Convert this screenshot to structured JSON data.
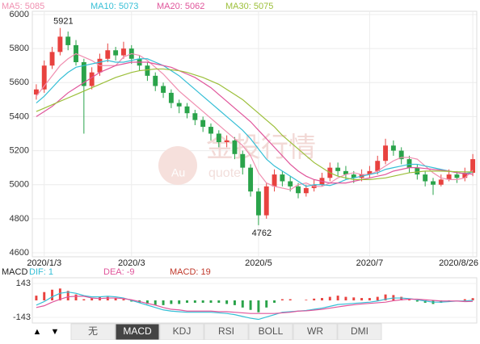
{
  "chart_data": {
    "type": "candlestick",
    "legend": [
      {
        "name": "MA5: 5085",
        "color": "#f08fb0"
      },
      {
        "name": "MA10: 5073",
        "color": "#36bfd6"
      },
      {
        "name": "MA20: 5062",
        "color": "#e0559b"
      },
      {
        "name": "MA30: 5075",
        "color": "#9cbf3a"
      }
    ],
    "categories": [
      null,
      "2020/1/3",
      null,
      null,
      null,
      null,
      null,
      null,
      null,
      null,
      null,
      null,
      "2020/3",
      null,
      null,
      null,
      null,
      null,
      null,
      null,
      null,
      null,
      null,
      null,
      null,
      null,
      null,
      null,
      "2020/5",
      null,
      null,
      null,
      null,
      null,
      null,
      null,
      null,
      null,
      null,
      null,
      null,
      null,
      "2020/7",
      null,
      null,
      null,
      null,
      null,
      null,
      null,
      null,
      null,
      null,
      null,
      null,
      "2020/8/26"
    ],
    "open": [
      5530,
      5560,
      5700,
      5780,
      5870,
      5820,
      5720,
      5580,
      5660,
      5740,
      5790,
      5760,
      5800,
      5740,
      5700,
      5640,
      5580,
      5540,
      5480,
      5460,
      5420,
      5380,
      5340,
      5300,
      5250,
      5260,
      5180,
      5100,
      4960,
      4820,
      4990,
      5060,
      5020,
      4990,
      4950,
      4980,
      5000,
      5040,
      5100,
      5080,
      5060,
      5040,
      5060,
      5080,
      5140,
      5230,
      5200,
      5150,
      5100,
      5060,
      5020,
      5000,
      5030,
      5060,
      5040,
      5070
    ],
    "high": [
      5590,
      5730,
      5810,
      5921,
      5900,
      5850,
      5740,
      5690,
      5770,
      5830,
      5810,
      5840,
      5820,
      5760,
      5720,
      5660,
      5600,
      5560,
      5500,
      5480,
      5440,
      5400,
      5360,
      5320,
      5290,
      5280,
      5200,
      5120,
      4980,
      5010,
      5090,
      5080,
      5050,
      5010,
      5000,
      5030,
      5070,
      5130,
      5130,
      5110,
      5080,
      5090,
      5110,
      5170,
      5270,
      5260,
      5220,
      5170,
      5120,
      5080,
      5040,
      5060,
      5090,
      5080,
      5100,
      5180
    ],
    "low": [
      5500,
      5540,
      5680,
      5760,
      5790,
      5700,
      5300,
      5560,
      5640,
      5720,
      5730,
      5740,
      5710,
      5670,
      5610,
      5550,
      5510,
      5450,
      5420,
      5390,
      5350,
      5310,
      5260,
      5220,
      5220,
      5150,
      5060,
      4930,
      4762,
      4800,
      4960,
      4990,
      4960,
      4920,
      4930,
      4960,
      4990,
      5020,
      5050,
      5030,
      5010,
      5020,
      5040,
      5060,
      5120,
      5170,
      5120,
      5070,
      5030,
      4990,
      4940,
      4990,
      5020,
      5010,
      5020,
      5050
    ],
    "close": [
      5560,
      5700,
      5780,
      5870,
      5820,
      5720,
      5580,
      5660,
      5740,
      5790,
      5760,
      5800,
      5740,
      5700,
      5640,
      5580,
      5540,
      5480,
      5460,
      5420,
      5380,
      5340,
      5300,
      5250,
      5260,
      5180,
      5100,
      4960,
      4820,
      4990,
      5060,
      5020,
      4990,
      4950,
      4980,
      5000,
      5040,
      5100,
      5080,
      5060,
      5040,
      5060,
      5080,
      5140,
      5230,
      5200,
      5150,
      5100,
      5060,
      5020,
      5000,
      5030,
      5060,
      5040,
      5070,
      5150
    ],
    "up_color": "#e8423f",
    "down_color": "#2aa34a",
    "ma": [
      [
        5520,
        5580,
        5640,
        5700,
        5740,
        5770,
        5750,
        5730,
        5700,
        5700,
        5700,
        5750,
        5770,
        5760,
        5730,
        5690,
        5650,
        5600,
        5550,
        5510,
        5470,
        5430,
        5390,
        5350,
        5310,
        5270,
        5230,
        5170,
        5070,
        5010,
        4990,
        4980,
        4970,
        5000,
        5010,
        4990,
        4990,
        5010,
        5040,
        5060,
        5070,
        5060,
        5060,
        5080,
        5110,
        5140,
        5160,
        5160,
        5150,
        5110,
        5070,
        5040,
        5030,
        5030,
        5040,
        5085
      ],
      [
        5480,
        5520,
        5570,
        5620,
        5660,
        5690,
        5700,
        5710,
        5720,
        5730,
        5720,
        5720,
        5730,
        5740,
        5740,
        5720,
        5700,
        5670,
        5640,
        5600,
        5560,
        5520,
        5480,
        5440,
        5400,
        5360,
        5320,
        5270,
        5210,
        5150,
        5110,
        5080,
        5050,
        5020,
        4990,
        5000,
        5000,
        4995,
        5010,
        5030,
        5040,
        5050,
        5060,
        5070,
        5090,
        5100,
        5110,
        5120,
        5120,
        5110,
        5100,
        5090,
        5080,
        5070,
        5065,
        5073
      ],
      [
        5400,
        5430,
        5460,
        5500,
        5540,
        5570,
        5600,
        5630,
        5660,
        5680,
        5700,
        5710,
        5720,
        5720,
        5720,
        5710,
        5700,
        5690,
        5670,
        5650,
        5630,
        5600,
        5570,
        5530,
        5490,
        5450,
        5410,
        5370,
        5320,
        5270,
        5220,
        5170,
        5120,
        5080,
        5050,
        5030,
        5020,
        5010,
        5010,
        5010,
        5020,
        5030,
        5040,
        5050,
        5060,
        5080,
        5090,
        5100,
        5100,
        5095,
        5090,
        5085,
        5080,
        5070,
        5065,
        5062
      ],
      [
        5430,
        5450,
        5470,
        5490,
        5510,
        5530,
        5550,
        5570,
        5590,
        5610,
        5630,
        5645,
        5660,
        5670,
        5675,
        5680,
        5680,
        5675,
        5670,
        5660,
        5645,
        5630,
        5610,
        5590,
        5560,
        5530,
        5500,
        5460,
        5420,
        5380,
        5340,
        5290,
        5250,
        5210,
        5170,
        5130,
        5100,
        5070,
        5050,
        5040,
        5030,
        5030,
        5030,
        5035,
        5040,
        5050,
        5060,
        5070,
        5075,
        5080,
        5080,
        5080,
        5078,
        5076,
        5075,
        5075
      ]
    ],
    "ylim": [
      4600,
      6000
    ],
    "yticks": [
      4600,
      4800,
      5000,
      5200,
      5400,
      5600,
      5800,
      6000
    ],
    "annotations": [
      {
        "text": "5921",
        "index": 3,
        "value": 5921
      },
      {
        "text": "4762",
        "index": 28,
        "value": 4762
      }
    ],
    "watermark": [
      "金投行情",
      "Au",
      "quote"
    ],
    "macd_panel": {
      "title": "MACD",
      "dif_label": "DIF: 1",
      "dea_label": "DEA: -9",
      "macd_label": "MACD: 19",
      "dif_color": "#36bfd6",
      "dea_color": "#e0559b",
      "ylim": [
        -170,
        170
      ],
      "yticks": [
        143,
        -143
      ],
      "hist": [
        40,
        70,
        90,
        100,
        80,
        50,
        10,
        20,
        30,
        30,
        20,
        10,
        -10,
        -20,
        -30,
        -40,
        -40,
        -30,
        -30,
        -20,
        -20,
        -20,
        -20,
        -20,
        -30,
        -40,
        -60,
        -80,
        -100,
        -60,
        -20,
        10,
        10,
        0,
        5,
        15,
        20,
        30,
        40,
        30,
        25,
        20,
        20,
        30,
        50,
        45,
        30,
        10,
        -10,
        -20,
        -30,
        -20,
        -10,
        0,
        10,
        19
      ],
      "dif": [
        -40,
        -10,
        30,
        60,
        70,
        60,
        40,
        30,
        30,
        35,
        30,
        20,
        0,
        -20,
        -40,
        -60,
        -80,
        -90,
        -95,
        -100,
        -100,
        -100,
        -100,
        -105,
        -110,
        -120,
        -135,
        -150,
        -160,
        -140,
        -120,
        -100,
        -95,
        -90,
        -85,
        -75,
        -65,
        -50,
        -35,
        -30,
        -25,
        -20,
        -15,
        -5,
        10,
        20,
        20,
        15,
        5,
        -5,
        -15,
        -15,
        -10,
        -5,
        -5,
        1
      ],
      "dea": [
        -60,
        -45,
        -15,
        10,
        30,
        35,
        35,
        20,
        15,
        20,
        20,
        15,
        5,
        -10,
        -25,
        -40,
        -60,
        -75,
        -80,
        -90,
        -90,
        -90,
        -90,
        -95,
        -95,
        -100,
        -105,
        -110,
        -110,
        -110,
        -110,
        -105,
        -100,
        -90,
        -88,
        -82,
        -75,
        -65,
        -55,
        -45,
        -37,
        -30,
        -25,
        -20,
        -15,
        -3,
        5,
        10,
        10,
        5,
        0,
        -5,
        -5,
        -5,
        -10,
        -9
      ]
    },
    "nav": [
      "▲",
      "▼"
    ],
    "tabs": [
      "无",
      "MACD",
      "KDJ",
      "RSI",
      "BOLL",
      "WR",
      "DMI"
    ],
    "active_tab": 1
  }
}
